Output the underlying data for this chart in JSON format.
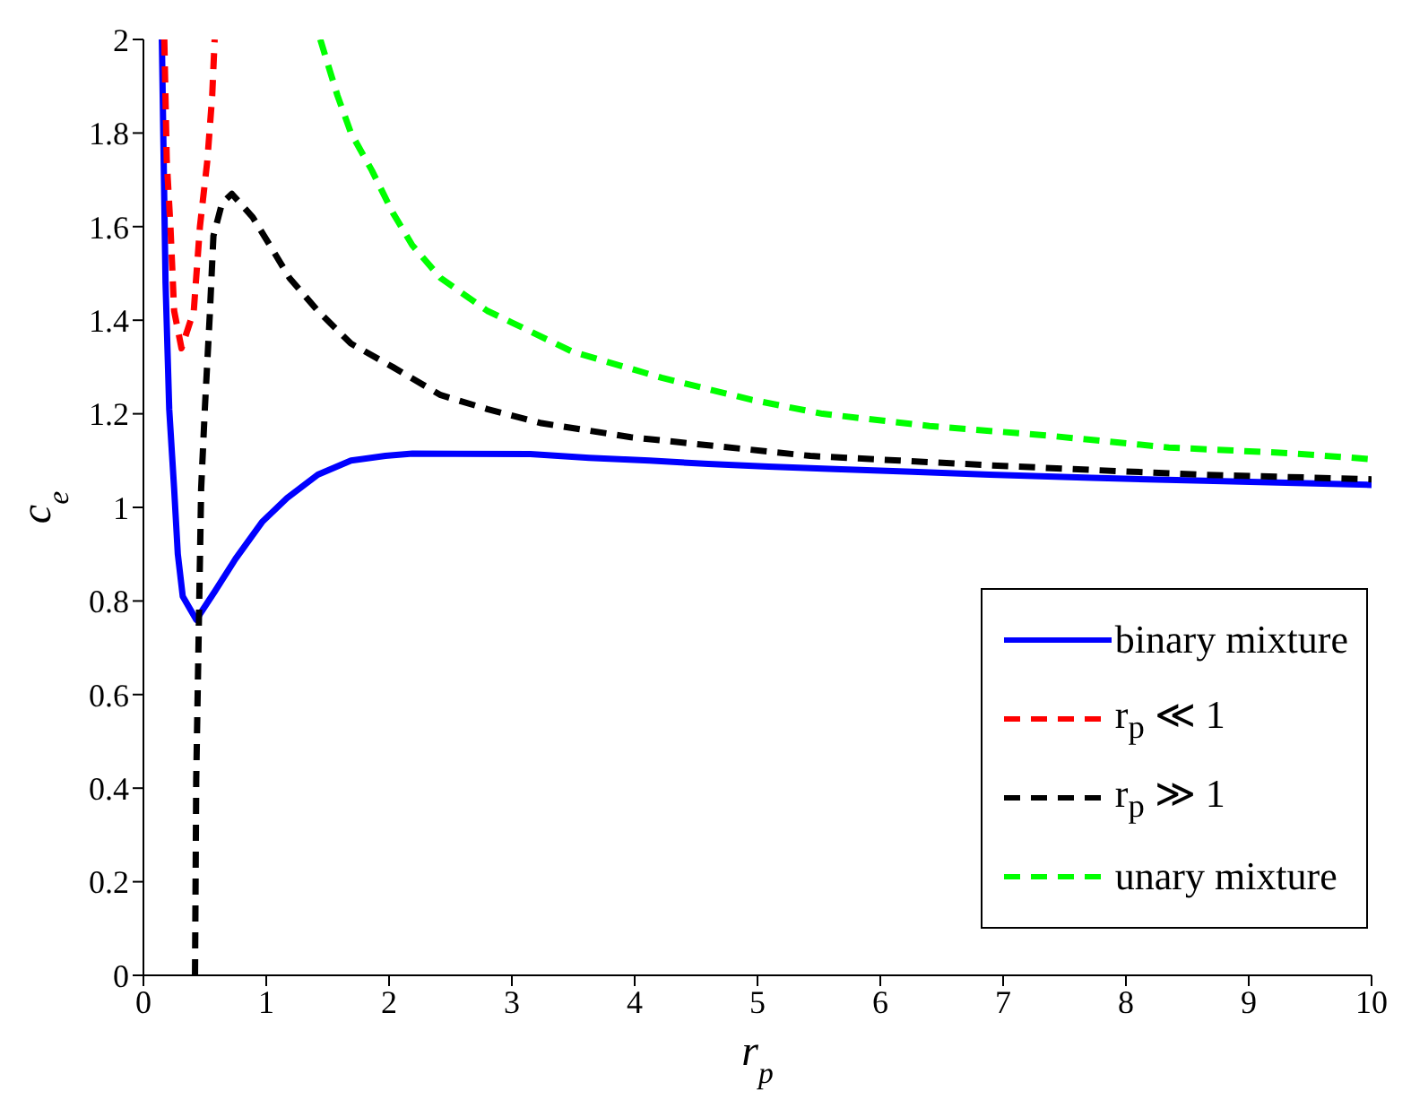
{
  "chart_data": {
    "type": "line",
    "xlabel": "r$_{p}$",
    "ylabel": "c$_{e}$",
    "xlim": [
      0,
      10
    ],
    "ylim": [
      0,
      2
    ],
    "xticks": [
      0,
      1,
      2,
      3,
      4,
      5,
      6,
      7,
      8,
      9,
      10
    ],
    "yticks": [
      0,
      0.2,
      0.4,
      0.6,
      0.8,
      1,
      1.2,
      1.4,
      1.6,
      1.8,
      2
    ],
    "grid": false,
    "legend": "bottom right",
    "marker": "none",
    "series": [
      {
        "name": "binary mixture",
        "color": "#0000ff",
        "line_style": "solid",
        "x": [
          0.15,
          0.18,
          0.21,
          0.25,
          0.28,
          0.32,
          0.43,
          0.58,
          0.75,
          0.97,
          1.17,
          1.42,
          1.69,
          1.97,
          2.19,
          3.15,
          3.63,
          4.12,
          4.6,
          5.09,
          5.63,
          6.26,
          6.89,
          7.72,
          8.64,
          10
        ],
        "values": [
          2,
          1.48,
          1.21,
          1.04,
          0.9,
          0.81,
          0.76,
          0.82,
          0.89,
          0.97,
          1.02,
          1.07,
          1.1,
          1.11,
          1.115,
          1.114,
          1.106,
          1.1,
          1.093,
          1.087,
          1.082,
          1.076,
          1.07,
          1.063,
          1.057,
          1.048
        ]
      },
      {
        "name": "r$_{p}$ ≪ 1",
        "color": "#ff0000",
        "line_style": "dashed",
        "x": [
          0.17,
          0.19,
          0.22,
          0.25,
          0.31,
          0.41,
          0.46,
          0.52,
          0.56,
          0.58
        ],
        "values": [
          2,
          1.74,
          1.6,
          1.42,
          1.34,
          1.42,
          1.6,
          1.74,
          1.88,
          2
        ]
      },
      {
        "name": "r$_{p}$ ≫ 1",
        "color": "#000000",
        "line_style": "dashed",
        "x": [
          0.42,
          0.43,
          0.47,
          0.5,
          0.54,
          0.57,
          0.64,
          0.72,
          0.89,
          1.03,
          1.19,
          1.42,
          1.69,
          2.03,
          2.42,
          2.8,
          3.24,
          3.97,
          4.7,
          5.43,
          6.16,
          6.89,
          7.72,
          8.6,
          10
        ],
        "values": [
          0,
          0.42,
          1.04,
          1.21,
          1.41,
          1.58,
          1.65,
          1.67,
          1.62,
          1.56,
          1.49,
          1.42,
          1.35,
          1.3,
          1.24,
          1.21,
          1.18,
          1.15,
          1.13,
          1.11,
          1.1,
          1.09,
          1.08,
          1.07,
          1.06
        ]
      },
      {
        "name": "unary mixture",
        "color": "#00ff00",
        "line_style": "dashed",
        "x": [
          1.44,
          1.58,
          1.69,
          1.86,
          2.03,
          2.19,
          2.42,
          2.8,
          3.0,
          3.49,
          4.22,
          4.95,
          5.53,
          6.4,
          7.38,
          8.35,
          9.32,
          10
        ],
        "values": [
          2,
          1.88,
          1.8,
          1.72,
          1.63,
          1.56,
          1.49,
          1.42,
          1.395,
          1.333,
          1.277,
          1.23,
          1.2,
          1.174,
          1.153,
          1.128,
          1.116,
          1.103
        ]
      }
    ]
  }
}
